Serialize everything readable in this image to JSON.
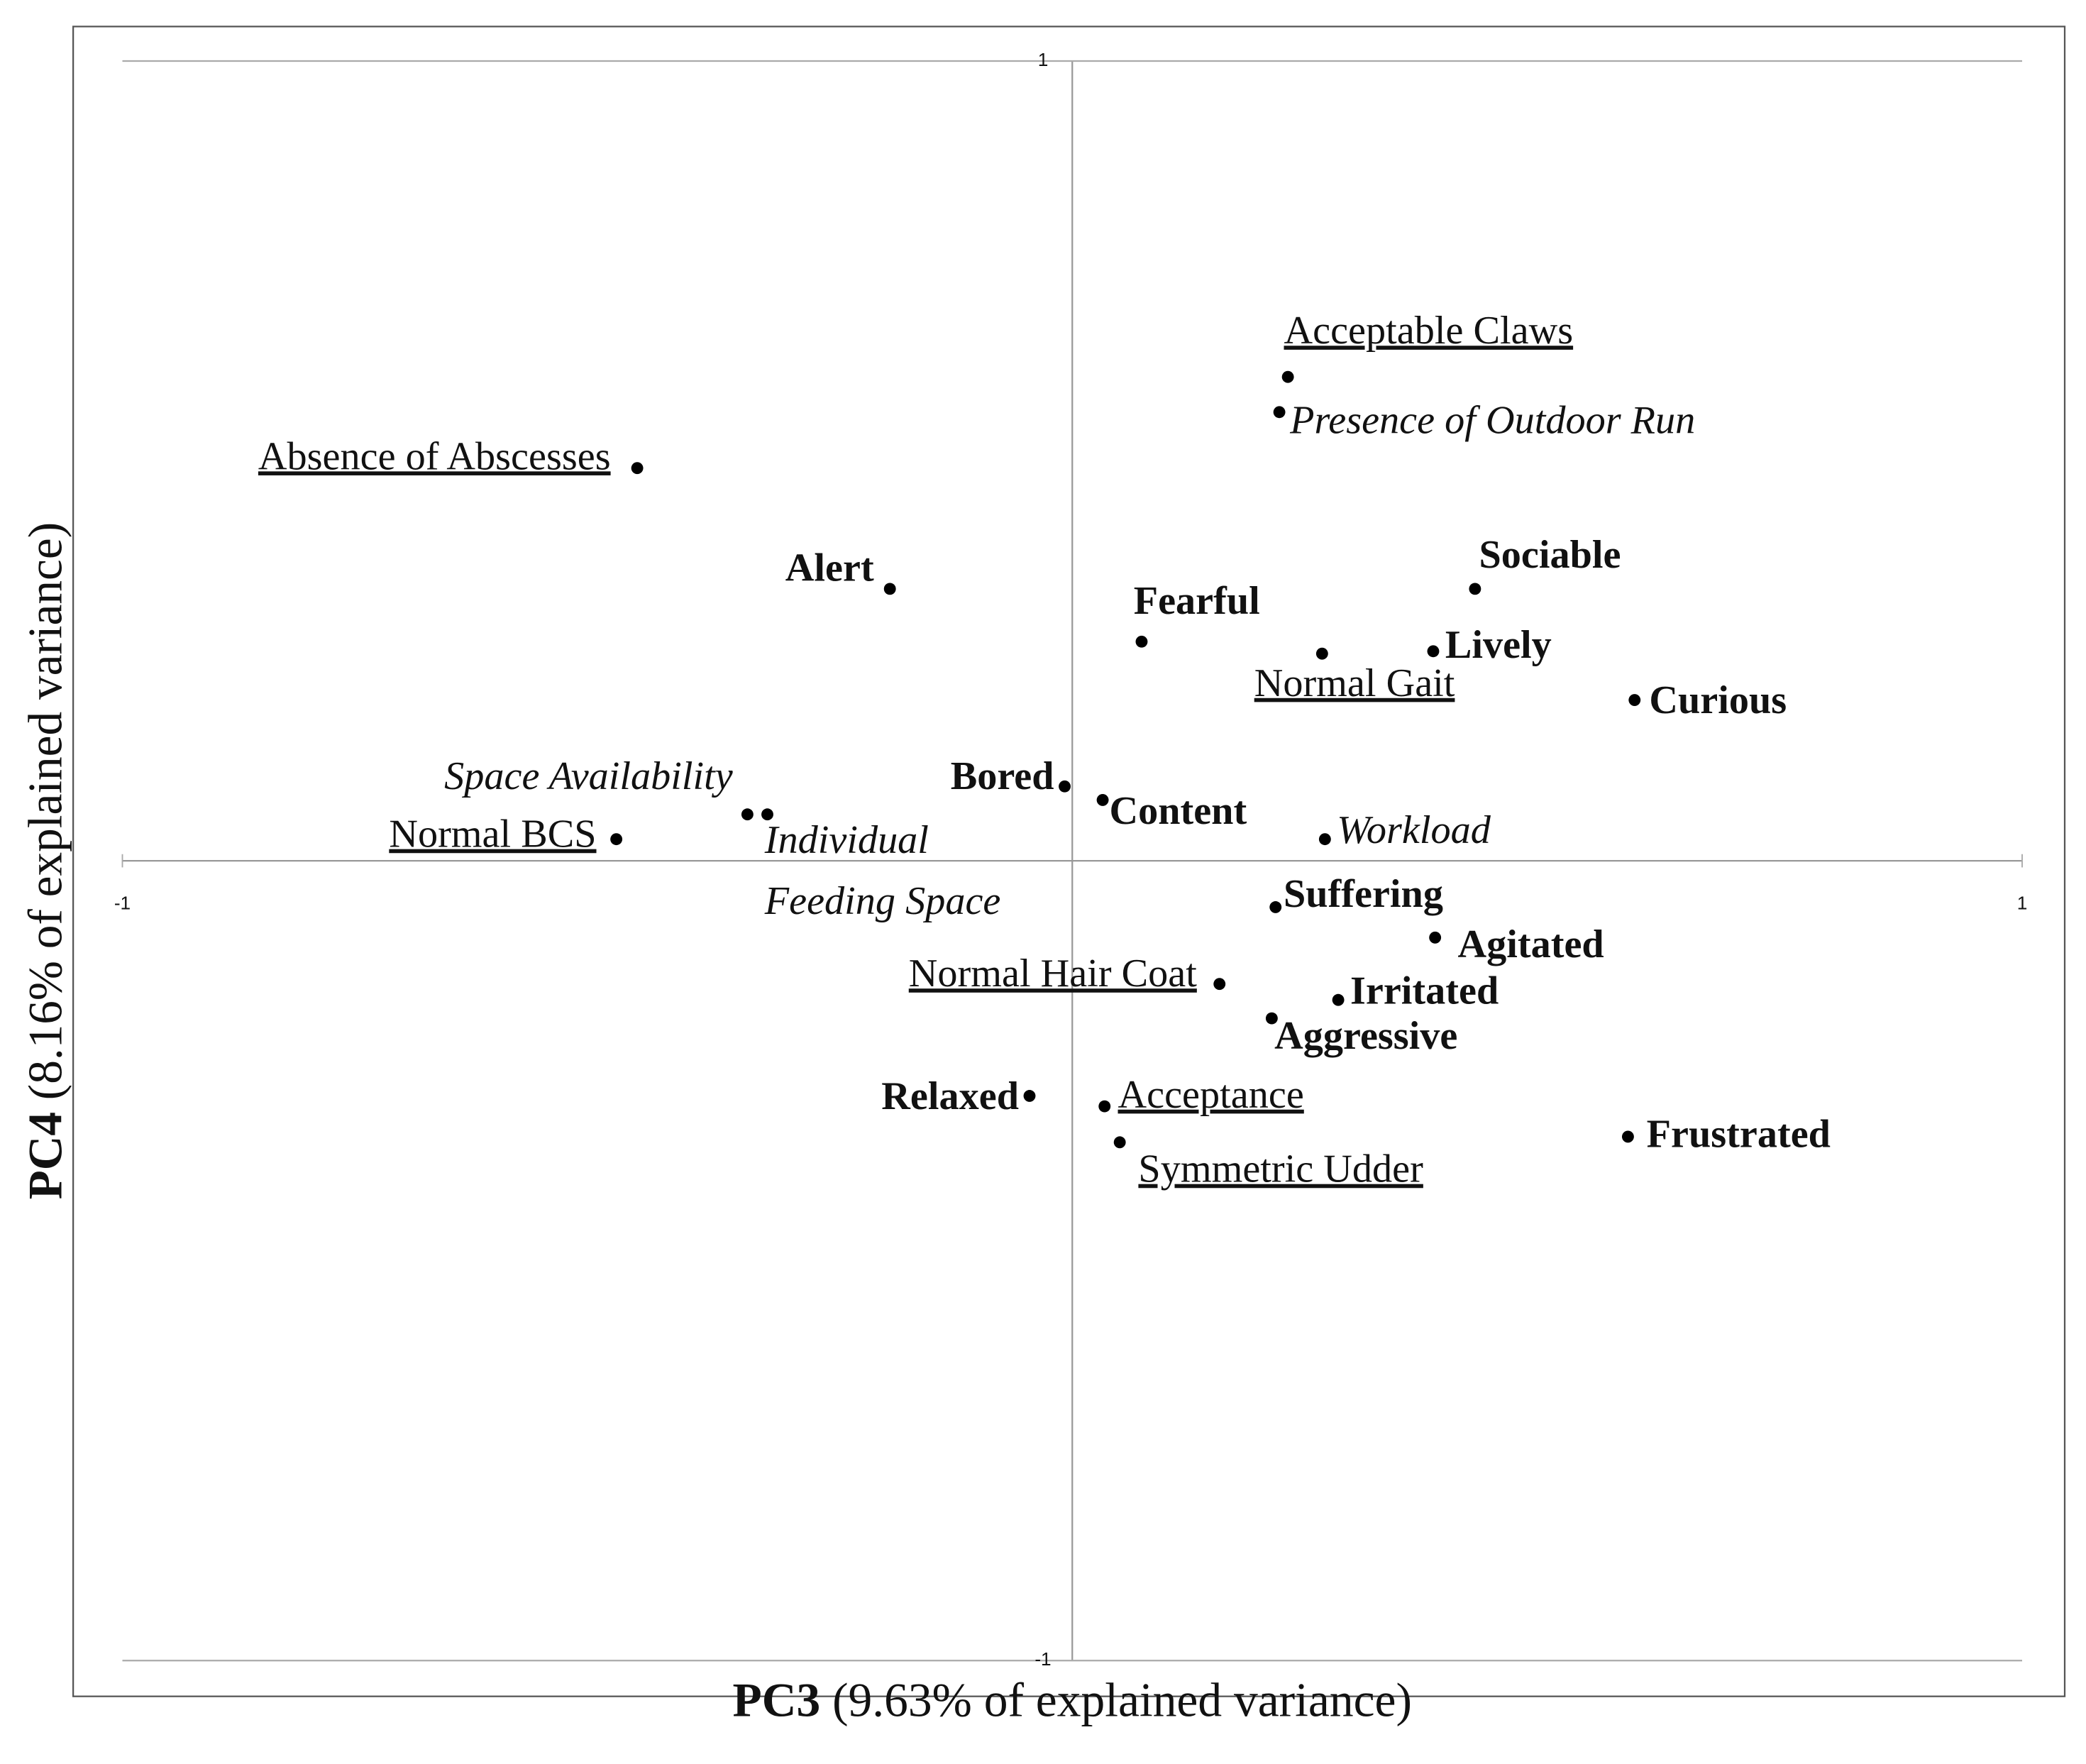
{
  "chart_data": {
    "type": "scatter",
    "x_label": {
      "bold": "PC3",
      "text": "(9.63% of explained variance)"
    },
    "y_label": {
      "bold": "PC4",
      "text": "(8.16% of explained variance)"
    },
    "xlim": [
      -1,
      1
    ],
    "ylim": [
      -1,
      1
    ],
    "xticks": [
      -1,
      1
    ],
    "yticks": [
      -1,
      1
    ],
    "color": "#000000",
    "points": [
      {
        "label": "Acceptable Claws",
        "style": "underline",
        "x": 0.227,
        "y": 0.605
      },
      {
        "label": "Presence of Outdoor Run",
        "style": "italic",
        "x": 0.218,
        "y": 0.561
      },
      {
        "label": "Absence of Abscesses",
        "style": "underline",
        "x": -0.458,
        "y": 0.491
      },
      {
        "label": "Alert",
        "style": "bold",
        "x": -0.192,
        "y": 0.34
      },
      {
        "label": "Sociable",
        "style": "bold",
        "x": 0.424,
        "y": 0.34
      },
      {
        "label": "Fearful",
        "style": "bold",
        "x": 0.073,
        "y": 0.274
      },
      {
        "label": "Normal Gait",
        "style": "underline",
        "x": 0.263,
        "y": 0.259
      },
      {
        "label": "Lively",
        "style": "bold",
        "x": 0.38,
        "y": 0.262
      },
      {
        "label": "Curious",
        "style": "bold",
        "x": 0.592,
        "y": 0.201
      },
      {
        "label": "Bored",
        "style": "bold",
        "x": -0.008,
        "y": 0.093
      },
      {
        "label": "Content",
        "style": "bold",
        "x": 0.032,
        "y": 0.076
      },
      {
        "label": "Space Availability",
        "style": "italic",
        "x": -0.342,
        "y": 0.058
      },
      {
        "label": "Individual Feeding Space",
        "style": "italic",
        "x": -0.321,
        "y": 0.058
      },
      {
        "label": "Normal BCS",
        "style": "underline",
        "x": -0.48,
        "y": 0.027
      },
      {
        "label": "Workload",
        "style": "italic",
        "x": 0.266,
        "y": 0.027
      },
      {
        "label": "Suffering",
        "style": "bold",
        "x": 0.214,
        "y": -0.058
      },
      {
        "label": "Agitated",
        "style": "bold",
        "x": 0.382,
        "y": -0.096
      },
      {
        "label": "Normal Hair Coat",
        "style": "underline",
        "x": 0.155,
        "y": -0.154
      },
      {
        "label": "Irritated",
        "style": "bold",
        "x": 0.28,
        "y": -0.174
      },
      {
        "label": "Aggressive",
        "style": "bold",
        "x": 0.21,
        "y": -0.197
      },
      {
        "label": "Relaxed",
        "style": "bold",
        "x": -0.045,
        "y": -0.294
      },
      {
        "label": "Acceptance",
        "style": "underline",
        "x": 0.034,
        "y": -0.307
      },
      {
        "label": "Symmetric Udder",
        "style": "underline",
        "x": 0.05,
        "y": -0.352
      },
      {
        "label": "Frustrated",
        "style": "bold",
        "x": 0.585,
        "y": -0.345
      }
    ]
  }
}
